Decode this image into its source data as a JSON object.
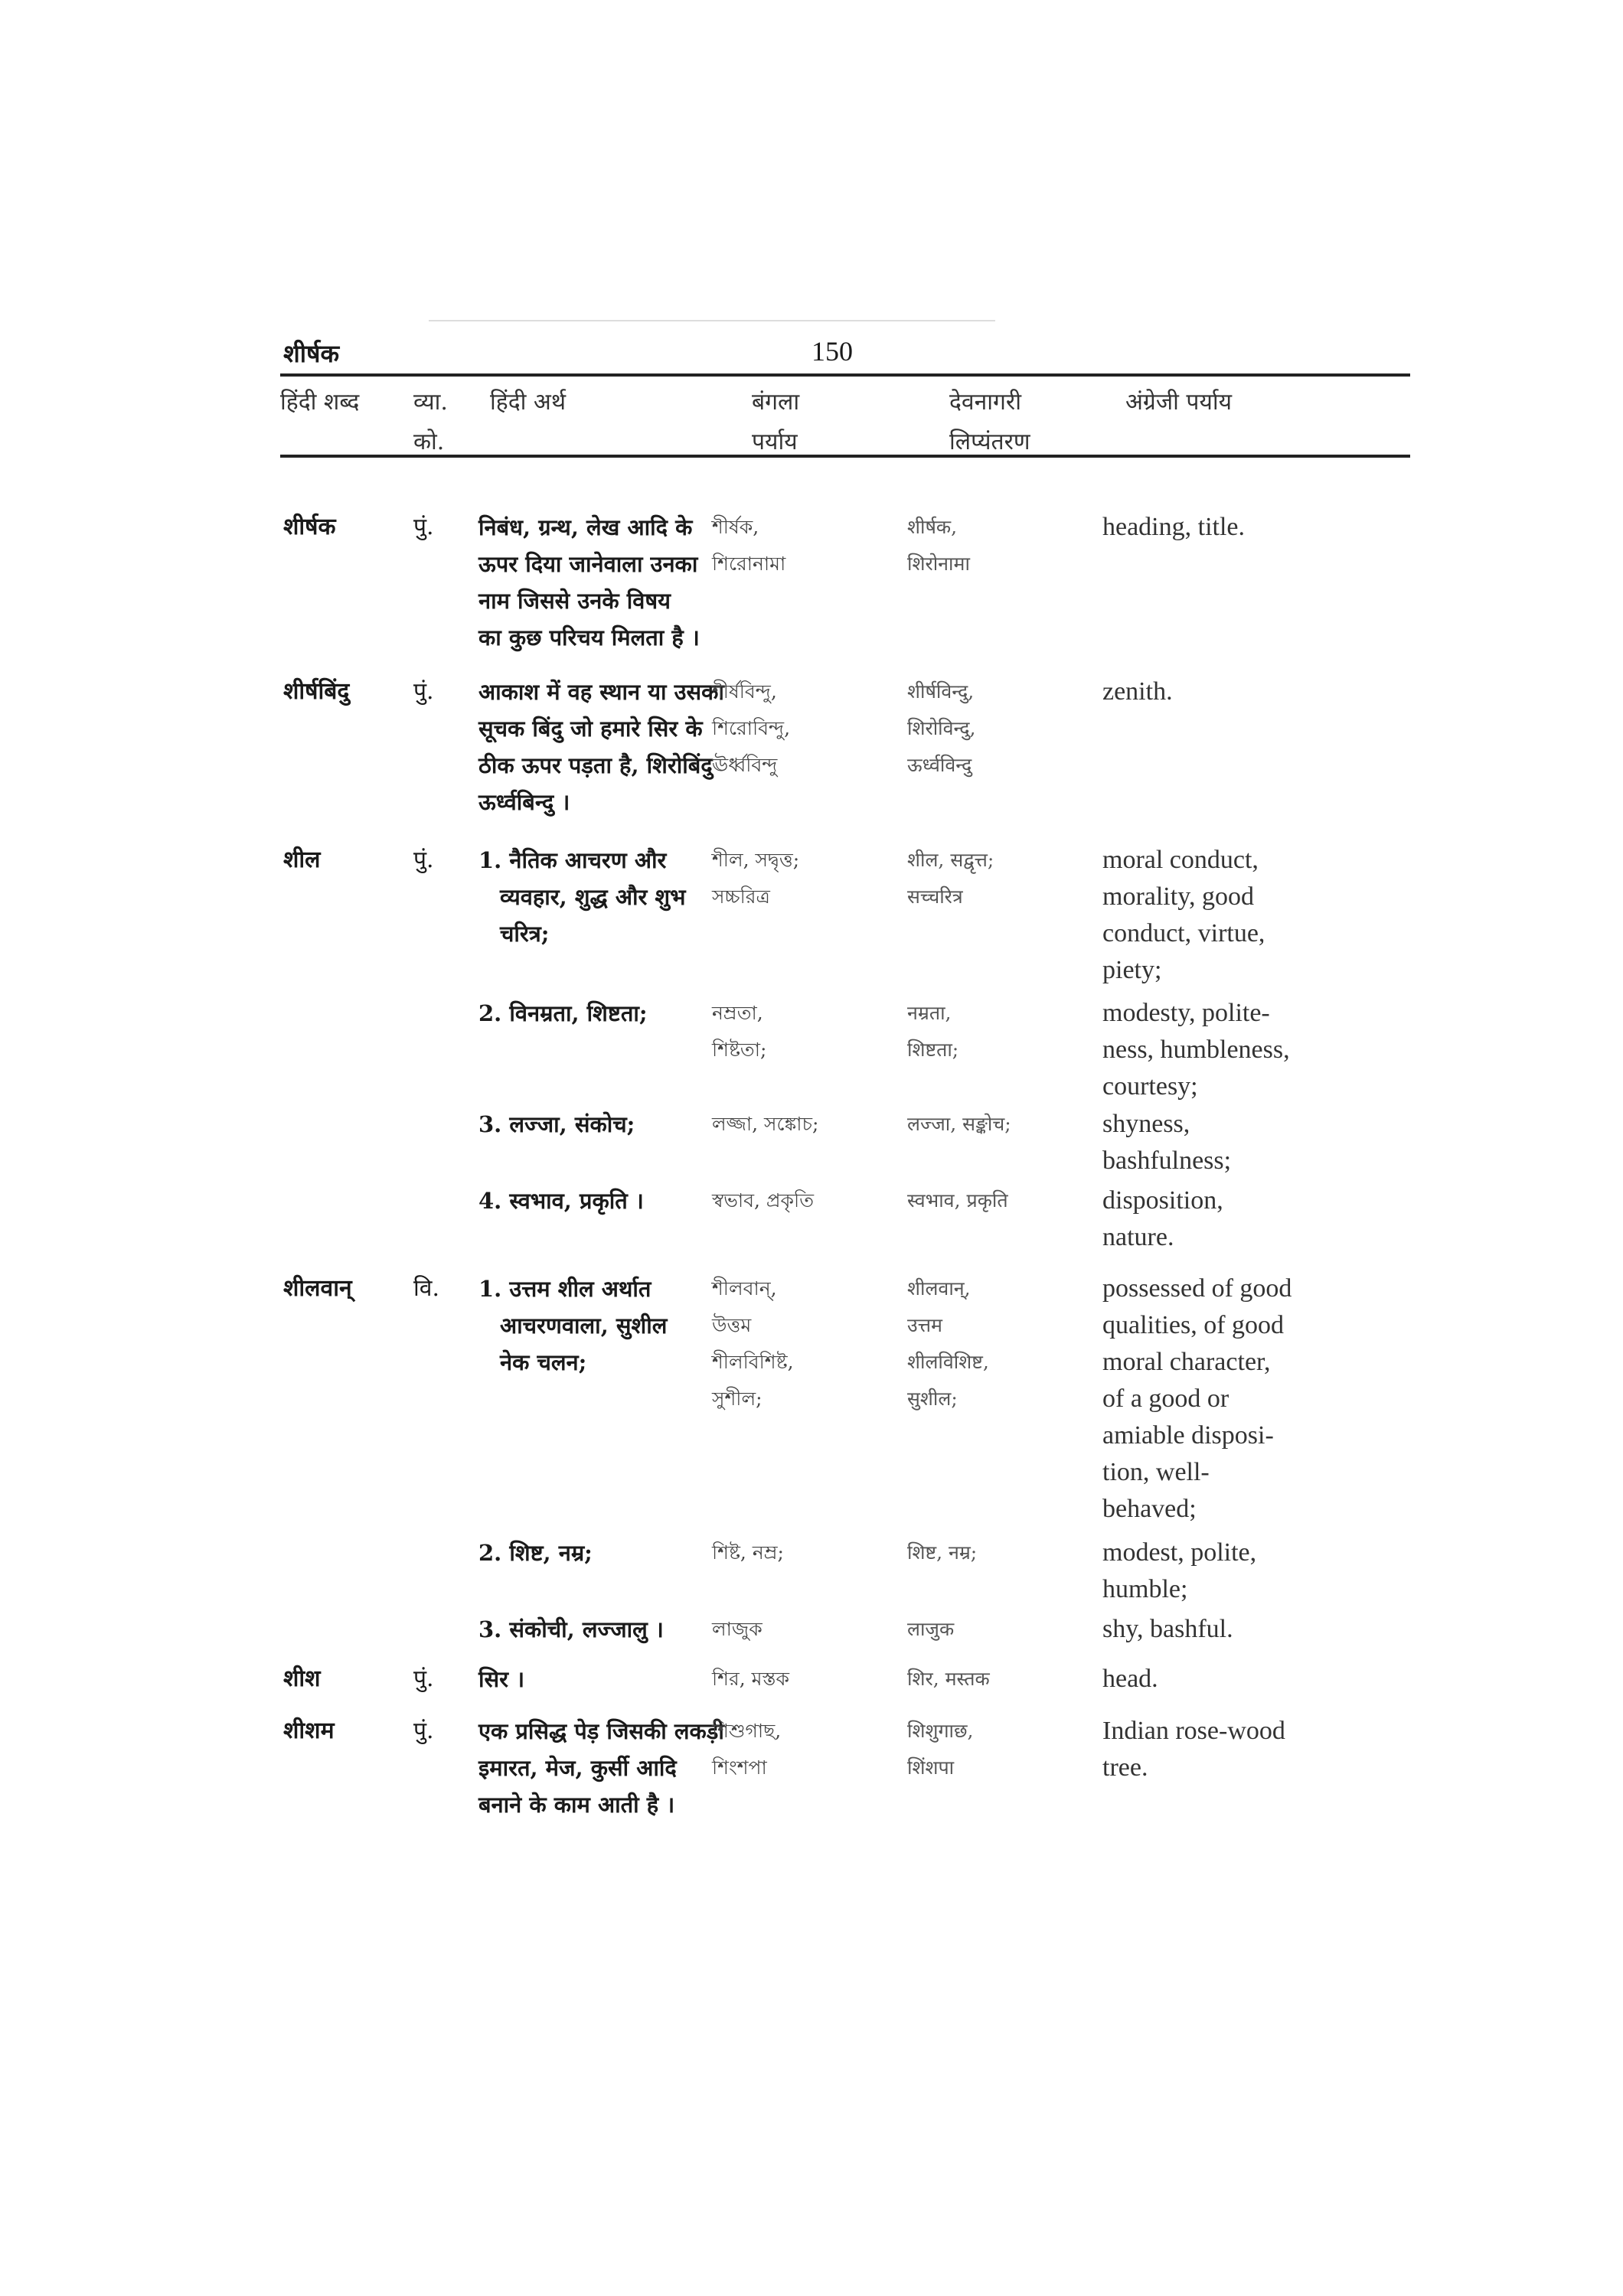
{
  "header": {
    "guide_word": "शीर्षक",
    "page_number": "150"
  },
  "columns": {
    "hindi_word": "हिंदी शब्द",
    "grammar": [
      "व्या.",
      "को."
    ],
    "hindi_meaning": "हिंदी अर्थ",
    "bengali": [
      "बंगला",
      "पर्याय"
    ],
    "devanagari": [
      "देवनागरी",
      "लिप्यंतरण"
    ],
    "english": "अंग्रेजी पर्याय"
  },
  "entries": [
    {
      "word": "शीर्षक",
      "gram": "पुं.",
      "meaning": [
        "निबंध, ग्रन्थ, लेख आदि के",
        "ऊपर दिया जानेवाला उनका",
        "नाम जिससे उनके विषय",
        "का कुछ परिचय मिलता है ।"
      ],
      "bengali": [
        "শীর্ষক,",
        "শিরোনামা"
      ],
      "devanagari": [
        "शीर्षक,",
        "शिरोनामा"
      ],
      "english": [
        "heading, title."
      ]
    },
    {
      "word": "शीर्षबिंदु",
      "gram": "पुं.",
      "meaning": [
        "आकाश में वह स्थान या उसका",
        "सूचक बिंदु जो हमारे सिर के",
        "ठीक ऊपर पड़ता है, शिरोबिंदु",
        "ऊर्ध्वबिन्दु ।"
      ],
      "bengali": [
        "শীর্ষবিন্দু,",
        "শিরোবিন্দু,",
        "ঊর্ধ্ববিন্দু"
      ],
      "devanagari": [
        "शीर्षविन्दु,",
        "शिरोविन्दु,",
        "ऊर्ध्वविन्दु"
      ],
      "english": [
        "zenith."
      ]
    },
    {
      "word": "शील",
      "gram": "पुं.",
      "meaning": [
        "1. नैतिक आचरण और",
        "   व्यवहार, शुद्ध और शुभ",
        "   चरित्र;"
      ],
      "bengali": [
        "শীল, সদ্বৃত্ত;",
        "সচ্চরিত্র"
      ],
      "devanagari": [
        "शील, सद्वृत्त;",
        "सच्चरित्र"
      ],
      "english": [
        "moral conduct,",
        "morality, good",
        "conduct, virtue,",
        "piety;"
      ]
    },
    {
      "word": "",
      "gram": "",
      "meaning": [
        "2. विनम्रता, शिष्टता;"
      ],
      "bengali": [
        "নম্রতা,",
        "শিষ্টতা;"
      ],
      "devanagari": [
        "नम्रता,",
        "शिष्टता;"
      ],
      "english": [
        "modesty, polite-",
        "ness, humbleness,",
        "courtesy;"
      ]
    },
    {
      "word": "",
      "gram": "",
      "meaning": [
        "3. लज्जा, संकोच;"
      ],
      "bengali": [
        "লজ্জা, সঙ্কোচ;"
      ],
      "devanagari": [
        "लज्जा, सङ्कोच;"
      ],
      "english": [
        "shyness,",
        "bashfulness;"
      ]
    },
    {
      "word": "",
      "gram": "",
      "meaning": [
        "4. स्वभाव, प्रकृति ।"
      ],
      "bengali": [
        "স্বভাব, প্রকৃতি"
      ],
      "devanagari": [
        "स्वभाव, प्रकृति"
      ],
      "english": [
        "disposition,",
        "nature."
      ]
    },
    {
      "word": "शीलवान्",
      "gram": "वि.",
      "meaning": [
        "1. उत्तम शील अर्थात",
        "   आचरणवाला, सुशील",
        "   नेक चलन;"
      ],
      "bengali": [
        "শীলবান্,",
        "উত্তম",
        "শীলবিশিষ্ট,",
        "সুশীল;"
      ],
      "devanagari": [
        "शीलवान्,",
        "उत्तम",
        "शीलविशिष्ट,",
        "सुशील;"
      ],
      "english": [
        "possessed of good",
        "qualities, of good",
        "moral character,",
        "of a good or",
        "amiable disposi-",
        "tion, well-",
        "behaved;"
      ]
    },
    {
      "word": "",
      "gram": "",
      "meaning": [
        "2. शिष्ट, नम्र;"
      ],
      "bengali": [
        "শিষ্ট, নম্র;"
      ],
      "devanagari": [
        "शिष्ट, नम्र;"
      ],
      "english": [
        "modest, polite,",
        "humble;"
      ]
    },
    {
      "word": "",
      "gram": "",
      "meaning": [
        "3. संकोची, लज्जालु ।"
      ],
      "bengali": [
        "লাজুক"
      ],
      "devanagari": [
        "लाजुक"
      ],
      "english": [
        "shy, bashful."
      ]
    },
    {
      "word": "शीश",
      "gram": "पुं.",
      "meaning": [
        "सिर ।"
      ],
      "bengali": [
        "শির, মস্তক"
      ],
      "devanagari": [
        "शिर, मस्तक"
      ],
      "english": [
        "head."
      ]
    },
    {
      "word": "शीशम",
      "gram": "पुं.",
      "meaning": [
        "एक प्रसिद्ध पेड़ जिसकी लकड़ी",
        "इमारत, मेज, कुर्सी आदि",
        "बनाने के काम आती है ।"
      ],
      "bengali": [
        "শিশুগাছ,",
        "শিংশপা"
      ],
      "devanagari": [
        "शिशुगाछ,",
        "शिंशपा"
      ],
      "english": [
        "Indian rose-wood",
        "tree."
      ]
    }
  ]
}
